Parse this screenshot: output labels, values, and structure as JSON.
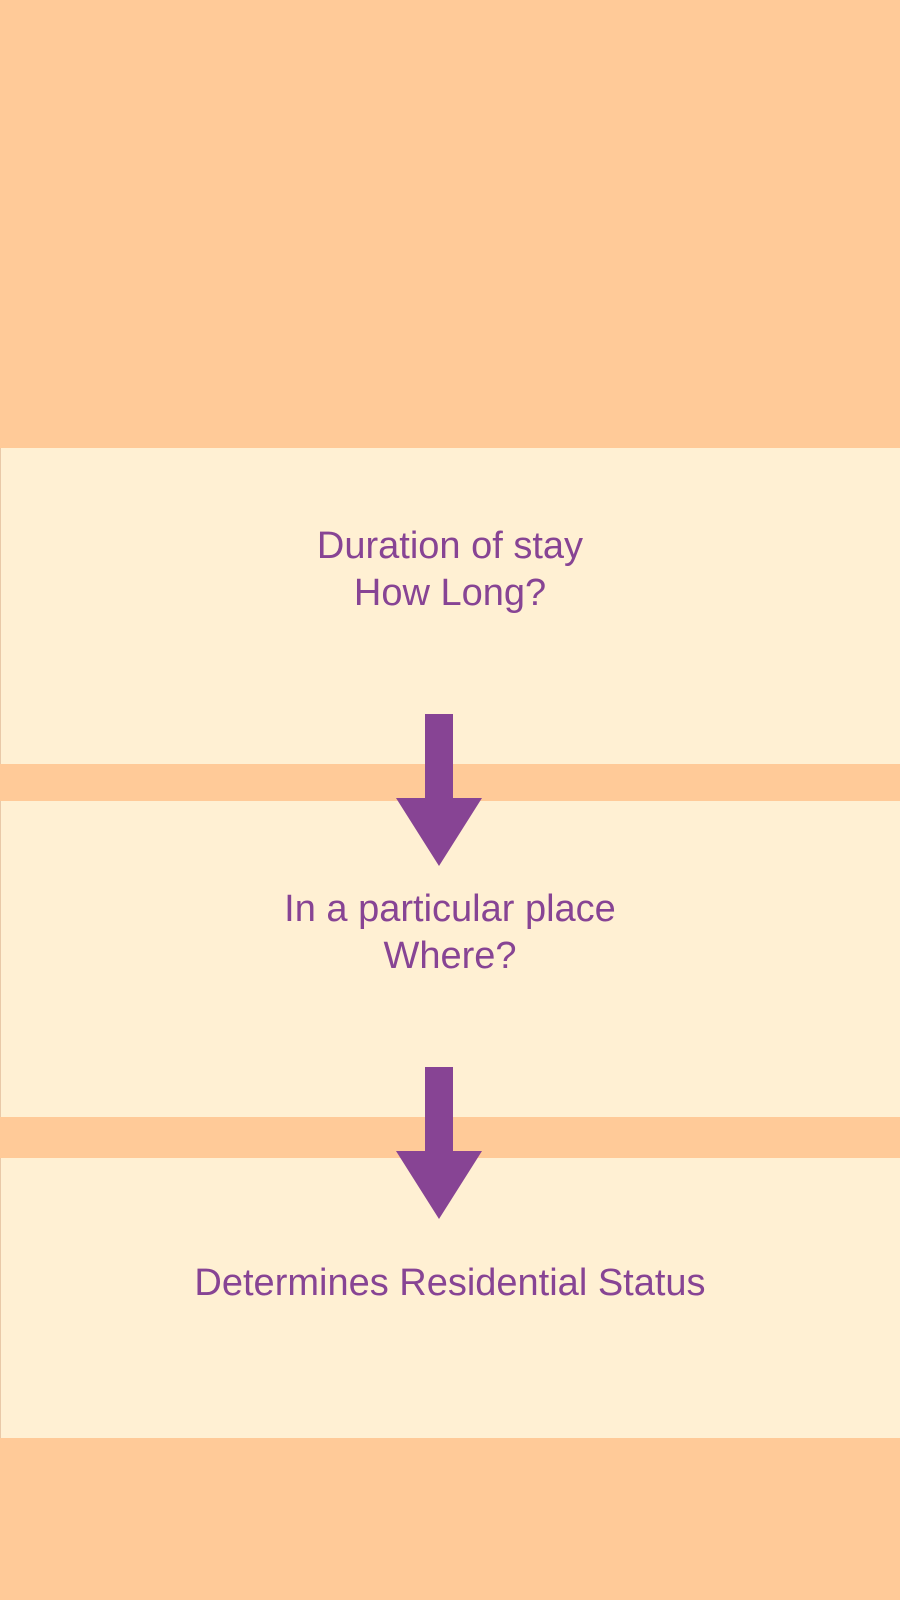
{
  "colors": {
    "background": "#FFCA98",
    "panel": "#FFF0D3",
    "text": "#874494",
    "arrow": "#874494"
  },
  "steps": [
    {
      "line1": "Duration of stay",
      "line2": "How Long?"
    },
    {
      "line1": "In a particular place",
      "line2": "Where?"
    },
    {
      "line1": "Determines Residential Status"
    }
  ],
  "connectors": [
    {
      "icon": "arrow-down-icon"
    },
    {
      "icon": "arrow-down-icon"
    }
  ]
}
